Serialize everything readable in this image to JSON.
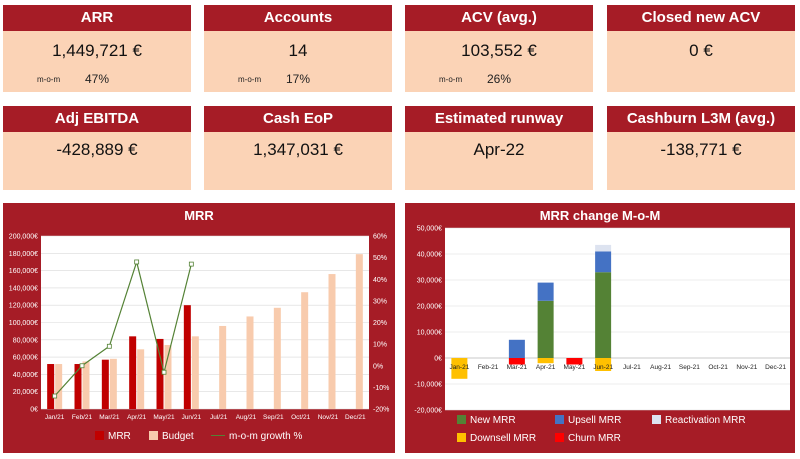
{
  "kpis": [
    {
      "title": "ARR",
      "value": "1,449,721 €",
      "mom_label": "m-o-m",
      "mom_value": "47%"
    },
    {
      "title": "Accounts",
      "value": "14",
      "mom_label": "m-o-m",
      "mom_value": "17%"
    },
    {
      "title": "ACV (avg.)",
      "value": "103,552 €",
      "mom_label": "m-o-m",
      "mom_value": "26%"
    },
    {
      "title": "Closed new ACV",
      "value": "0 €"
    },
    {
      "title": "Adj EBITDA",
      "value": "-428,889 €"
    },
    {
      "title": "Cash EoP",
      "value": "1,347,031 €"
    },
    {
      "title": "Estimated runway",
      "value": "Apr-22"
    },
    {
      "title": "Cashburn L3M (avg.)",
      "value": "-138,771 €"
    }
  ],
  "colors": {
    "accent": "#a61c26",
    "kpi_bg": "#fbd3b6",
    "mrr": "#c00000",
    "budget": "#f8cbad",
    "growth": "#548235",
    "new_mrr": "#548235",
    "upsell": "#4472c4",
    "reactivation": "#dde3f0",
    "downsell": "#ffc000",
    "churn": "#ff0000"
  },
  "chart_data": [
    {
      "type": "bar",
      "title": "MRR",
      "categories": [
        "Jan/21",
        "Feb/21",
        "Mar/21",
        "Apr/21",
        "May/21",
        "Jun/21",
        "Jul/21",
        "Aug/21",
        "Sep/21",
        "Oct/21",
        "Nov/21",
        "Dec/21"
      ],
      "ylim": [
        0,
        200000
      ],
      "y_ticks": [
        "0€",
        "20,000€",
        "40,000€",
        "60,000€",
        "80,000€",
        "100,000€",
        "120,000€",
        "140,000€",
        "160,000€",
        "180,000€",
        "200,000€"
      ],
      "y2lim": [
        -20,
        60
      ],
      "y2_ticks": [
        "-20%",
        "-10%",
        "0%",
        "10%",
        "20%",
        "30%",
        "40%",
        "50%",
        "60%"
      ],
      "series": [
        {
          "name": "MRR",
          "type": "bar",
          "values": [
            52000,
            52000,
            57000,
            84000,
            81000,
            120000,
            null,
            null,
            null,
            null,
            null,
            null
          ]
        },
        {
          "name": "Budget",
          "type": "bar",
          "values": [
            52000,
            55000,
            58000,
            69000,
            74000,
            84000,
            96000,
            107000,
            117000,
            135000,
            156000,
            179000
          ]
        },
        {
          "name": "m-o-m growth %",
          "type": "line",
          "axis": "secondary",
          "values": [
            -14,
            0,
            9,
            48,
            -3,
            47,
            null,
            null,
            null,
            null,
            null,
            null
          ]
        }
      ],
      "grid": true,
      "legend": "bottom"
    },
    {
      "type": "bar",
      "stacked": true,
      "title": "MRR change M-o-M",
      "categories": [
        "Jan-21",
        "Feb-21",
        "Mar-21",
        "Apr-21",
        "May-21",
        "Jun-21",
        "Jul-21",
        "Aug-21",
        "Sep-21",
        "Oct-21",
        "Nov-21",
        "Dec-21"
      ],
      "ylim": [
        -20000,
        50000
      ],
      "y_ticks": [
        "-20,000€",
        "-10,000€",
        "0€",
        "10,000€",
        "20,000€",
        "30,000€",
        "40,000€",
        "50,000€"
      ],
      "series": [
        {
          "name": "New MRR",
          "values": [
            0,
            0,
            0,
            22000,
            0,
            33000,
            0,
            0,
            0,
            0,
            0,
            0
          ]
        },
        {
          "name": "Upsell MRR",
          "values": [
            0,
            0,
            7000,
            7000,
            0,
            8000,
            0,
            0,
            0,
            0,
            0,
            0
          ]
        },
        {
          "name": "Reactivation MRR",
          "values": [
            0,
            0,
            0,
            0,
            0,
            2500,
            0,
            0,
            0,
            0,
            0,
            0
          ]
        },
        {
          "name": "Downsell MRR",
          "values": [
            -8000,
            0,
            0,
            -2000,
            0,
            -5000,
            0,
            0,
            0,
            0,
            0,
            0
          ]
        },
        {
          "name": "Churn MRR",
          "values": [
            0,
            0,
            -2500,
            0,
            -2500,
            0,
            0,
            0,
            0,
            0,
            0,
            0
          ]
        }
      ],
      "grid": true,
      "legend": "bottom"
    }
  ]
}
